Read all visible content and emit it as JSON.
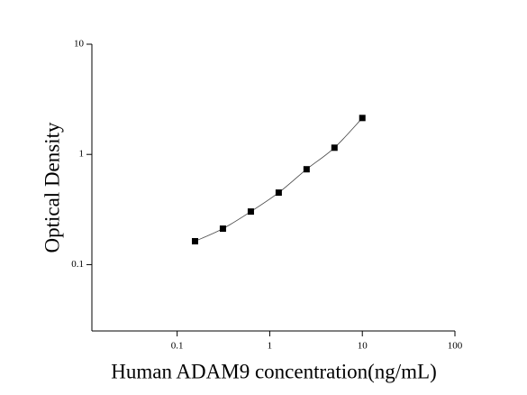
{
  "chart_data": {
    "type": "scatter",
    "x_label": "Human ADAM9 concentration(ng/mL)",
    "y_label": "Optical Density",
    "x": [
      0.156,
      0.312,
      0.625,
      1.25,
      2.5,
      5,
      10
    ],
    "values": [
      0.163,
      0.212,
      0.303,
      0.45,
      0.733,
      1.15,
      2.14
    ],
    "color": "#000000",
    "xscale": "log",
    "yscale": "log",
    "xlim": [
      0.012,
      100
    ],
    "ylim": [
      0.025,
      10
    ],
    "xticks": [
      0.1,
      1,
      10,
      100
    ],
    "yticks": [
      0.1,
      1,
      10
    ],
    "fit_line": true
  }
}
